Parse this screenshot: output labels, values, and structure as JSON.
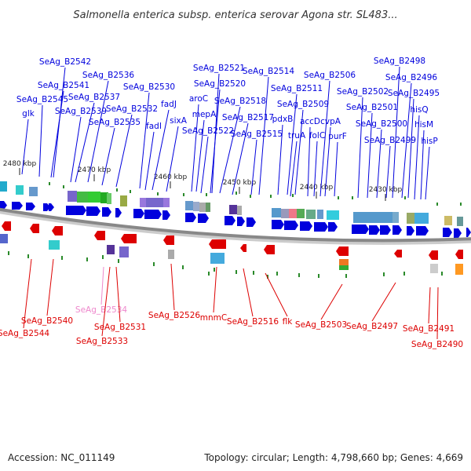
{
  "title": "Salmonella enterica subsp. enterica serovar Agona str. SL483...",
  "accession_text": "Accession: NC_011149",
  "topology_text": "Topology: circular; Length: 4,798,660 bp; Genes: 4,669",
  "colors": {
    "forward_strand": "#0000dd",
    "reverse_strand": "#dd0000",
    "pink_label": "#ee88cc",
    "backbone": "#888888",
    "tick_mark": "#2a8a2a"
  },
  "ticks": [
    "2480 kbp",
    "2470 kbp",
    "2460 kbp",
    "2450 kbp",
    "2440 kbp",
    "2430 kbp"
  ],
  "forward_genes": [
    "SeAg_B2542",
    "SeAg_B2541",
    "SeAg_B2545",
    "glk",
    "SeAg_B2536",
    "SeAg_B2537",
    "SeAg_B2539",
    "SeAg_B2535",
    "SeAg_B2532",
    "SeAg_B2530",
    "fadJ",
    "fadI",
    "sixA",
    "aroC",
    "mepA",
    "SeAg_B2522",
    "SeAg_B2521",
    "SeAg_B2520",
    "SeAg_B2518",
    "SeAg_B2517",
    "SeAg_B2515",
    "SeAg_B2514",
    "SeAg_B2511",
    "pdxB",
    "SeAg_B2509",
    "truA",
    "accD",
    "folC",
    "SeAg_B2506",
    "cvpA",
    "purF",
    "SeAg_B2502",
    "SeAg_B2501",
    "SeAg_B2500",
    "SeAg_B2498",
    "SeAg_B2496",
    "SeAg_B2495",
    "SeAg_B2499",
    "hisQ",
    "hisM",
    "hisP"
  ],
  "reverse_genes": [
    "SeAg_B2540",
    "SeAg_B2544",
    "SeAg_B2534",
    "SeAg_B2531",
    "SeAg_B2533",
    "SeAg_B2526",
    "mnmC",
    "SeAg_B2516",
    "flk",
    "SeAg_B2503",
    "SeAg_B2497",
    "SeAg_B2491",
    "SeAg_B2490"
  ]
}
